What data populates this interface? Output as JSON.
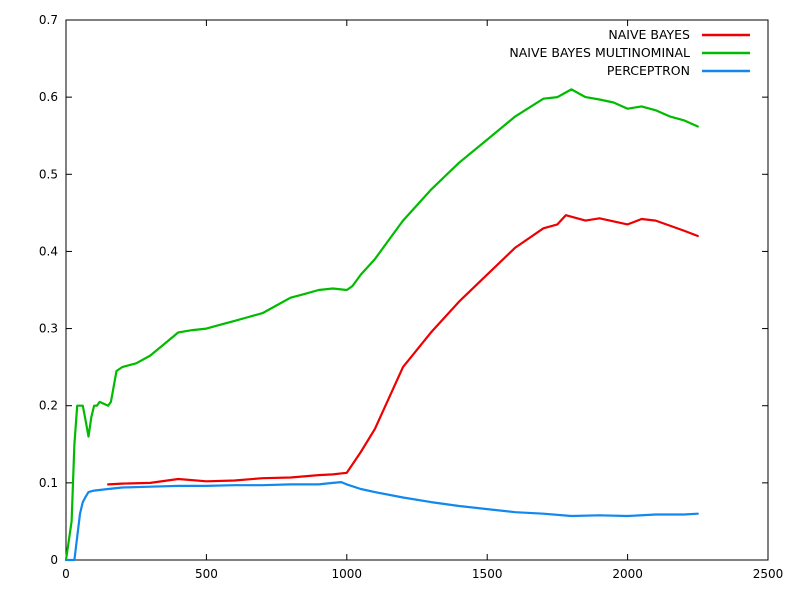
{
  "chart_data": {
    "type": "line",
    "title": "",
    "xlabel": "",
    "ylabel": "",
    "xlim": [
      0,
      2500
    ],
    "ylim": [
      0,
      0.7
    ],
    "x_ticks": [
      0,
      500,
      1000,
      1500,
      2000,
      2500
    ],
    "y_ticks": [
      0,
      0.1,
      0.2,
      0.3,
      0.4,
      0.5,
      0.6,
      0.7
    ],
    "x_tick_labels": [
      "0",
      "500",
      "1000",
      "1500",
      "2000",
      "2500"
    ],
    "y_tick_labels": [
      "0",
      "0.1",
      "0.2",
      "0.3",
      "0.4",
      "0.5",
      "0.6",
      "0.7"
    ],
    "grid": false,
    "legend_position": "top-right",
    "series": [
      {
        "name": "NAIVE BAYES",
        "color": "#ee0000",
        "x": [
          150,
          200,
          300,
          400,
          500,
          600,
          700,
          800,
          900,
          950,
          1000,
          1050,
          1100,
          1200,
          1300,
          1400,
          1500,
          1600,
          1700,
          1750,
          1780,
          1850,
          1900,
          2000,
          2050,
          2100,
          2200,
          2250
        ],
        "y": [
          0.098,
          0.099,
          0.1,
          0.105,
          0.102,
          0.103,
          0.106,
          0.107,
          0.11,
          0.111,
          0.113,
          0.14,
          0.17,
          0.25,
          0.295,
          0.335,
          0.37,
          0.405,
          0.43,
          0.435,
          0.447,
          0.44,
          0.443,
          0.435,
          0.442,
          0.44,
          0.427,
          0.42
        ]
      },
      {
        "name": "NAIVE BAYES MULTINOMINAL",
        "color": "#00bb00",
        "x": [
          0,
          20,
          30,
          40,
          60,
          70,
          80,
          90,
          100,
          110,
          120,
          150,
          160,
          180,
          200,
          250,
          300,
          350,
          400,
          450,
          500,
          550,
          600,
          650,
          700,
          750,
          800,
          850,
          900,
          950,
          1000,
          1020,
          1050,
          1100,
          1150,
          1200,
          1300,
          1400,
          1500,
          1600,
          1700,
          1750,
          1800,
          1850,
          1900,
          1950,
          2000,
          2050,
          2100,
          2150,
          2200,
          2250
        ],
        "y": [
          0,
          0.05,
          0.15,
          0.2,
          0.2,
          0.18,
          0.16,
          0.185,
          0.2,
          0.2,
          0.205,
          0.2,
          0.205,
          0.245,
          0.25,
          0.255,
          0.265,
          0.28,
          0.295,
          0.298,
          0.3,
          0.305,
          0.31,
          0.315,
          0.32,
          0.33,
          0.34,
          0.345,
          0.35,
          0.352,
          0.35,
          0.355,
          0.37,
          0.39,
          0.415,
          0.44,
          0.48,
          0.515,
          0.545,
          0.575,
          0.598,
          0.6,
          0.61,
          0.6,
          0.597,
          0.593,
          0.585,
          0.588,
          0.583,
          0.575,
          0.57,
          0.562
        ]
      },
      {
        "name": "PERCEPTRON",
        "color": "#1188ee",
        "x": [
          0,
          30,
          40,
          50,
          60,
          70,
          80,
          100,
          150,
          200,
          300,
          400,
          500,
          600,
          700,
          800,
          900,
          950,
          980,
          1000,
          1050,
          1100,
          1200,
          1300,
          1400,
          1500,
          1600,
          1700,
          1800,
          1900,
          2000,
          2100,
          2200,
          2250
        ],
        "y": [
          0,
          0,
          0.03,
          0.06,
          0.075,
          0.082,
          0.088,
          0.09,
          0.092,
          0.094,
          0.095,
          0.096,
          0.096,
          0.097,
          0.097,
          0.098,
          0.098,
          0.1,
          0.101,
          0.098,
          0.092,
          0.088,
          0.081,
          0.075,
          0.07,
          0.066,
          0.062,
          0.06,
          0.057,
          0.058,
          0.057,
          0.059,
          0.059,
          0.06
        ]
      }
    ]
  }
}
